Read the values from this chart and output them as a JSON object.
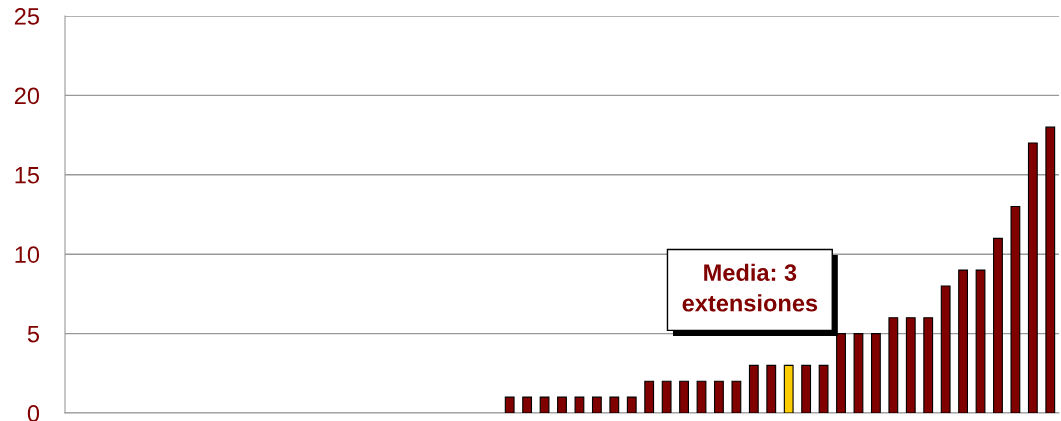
{
  "chart_data": {
    "type": "bar",
    "categories": [
      null,
      null,
      null,
      null,
      null,
      null,
      null,
      null,
      null,
      null,
      null,
      null,
      null,
      null,
      null,
      null,
      null,
      null,
      null,
      null,
      null,
      null,
      null,
      null,
      null,
      null,
      null,
      null,
      null,
      null,
      null,
      null,
      null,
      null,
      null,
      null,
      null,
      null,
      null,
      null,
      null,
      null,
      null,
      null,
      null,
      null,
      null,
      null,
      null,
      null,
      null,
      null,
      null,
      null,
      null,
      null,
      null
    ],
    "values": [
      0,
      0,
      0,
      0,
      0,
      0,
      0,
      0,
      0,
      0,
      0,
      0,
      0,
      0,
      0,
      0,
      0,
      0,
      0,
      0,
      0,
      0,
      0,
      0,
      0,
      1,
      1,
      1,
      1,
      1,
      1,
      1,
      1,
      2,
      2,
      2,
      2,
      2,
      2,
      3,
      3,
      3,
      3,
      3,
      5,
      5,
      5,
      6,
      6,
      6,
      8,
      9,
      9,
      11,
      13,
      17,
      18
    ],
    "colors": [
      "#800000",
      "#800000",
      "#800000",
      "#800000",
      "#800000",
      "#800000",
      "#800000",
      "#800000",
      "#800000",
      "#800000",
      "#800000",
      "#800000",
      "#800000",
      "#800000",
      "#800000",
      "#800000",
      "#800000",
      "#800000",
      "#800000",
      "#800000",
      "#800000",
      "#800000",
      "#800000",
      "#800000",
      "#800000",
      "#800000",
      "#800000",
      "#800000",
      "#800000",
      "#800000",
      "#800000",
      "#800000",
      "#800000",
      "#800000",
      "#800000",
      "#800000",
      "#800000",
      "#800000",
      "#800000",
      "#800000",
      "#800000",
      "#ffcc00",
      "#800000",
      "#800000",
      "#800000",
      "#800000",
      "#800000",
      "#800000",
      "#800000",
      "#800000",
      "#800000",
      "#800000",
      "#800000",
      "#800000",
      "#800000",
      "#800000",
      "#800000"
    ],
    "ylim": [
      0,
      25
    ],
    "yticks": [
      0,
      5,
      10,
      15,
      20,
      25
    ],
    "grid": "y",
    "annotations": [
      "Media: 3\nextensiones"
    ]
  }
}
